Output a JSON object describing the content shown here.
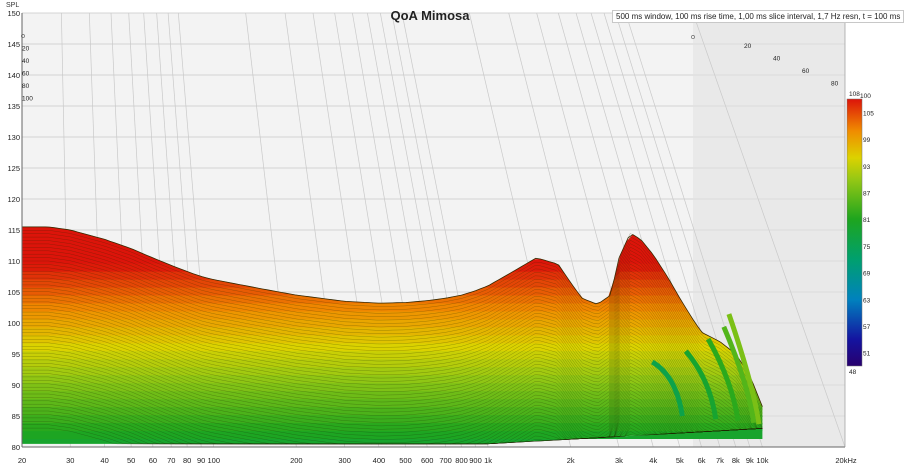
{
  "chart_data": {
    "type": "area",
    "subtype": "waterfall-3d",
    "title": "QoA Mimosa",
    "info": "500 ms window, 100 ms rise time, 1,00 ms slice interval, 1,7 Hz resn, t = 100 ms",
    "xlabel": "",
    "ylabel": "SPL",
    "x_unit_label": "20kHz",
    "xscale": "log",
    "xlim": [
      20,
      20000
    ],
    "ylim": [
      80,
      150
    ],
    "x_ticks": [
      {
        "value": 20,
        "label": "20"
      },
      {
        "value": 30,
        "label": "30"
      },
      {
        "value": 40,
        "label": "40"
      },
      {
        "value": 50,
        "label": "50"
      },
      {
        "value": 60,
        "label": "60"
      },
      {
        "value": 70,
        "label": "70"
      },
      {
        "value": 80,
        "label": "80"
      },
      {
        "value": 90,
        "label": "90"
      },
      {
        "value": 100,
        "label": "100"
      },
      {
        "value": 200,
        "label": "200"
      },
      {
        "value": 300,
        "label": "300"
      },
      {
        "value": 400,
        "label": "400"
      },
      {
        "value": 500,
        "label": "500"
      },
      {
        "value": 600,
        "label": "600"
      },
      {
        "value": 700,
        "label": "700"
      },
      {
        "value": 800,
        "label": "800"
      },
      {
        "value": 900,
        "label": "900"
      },
      {
        "value": 1000,
        "label": "1k"
      },
      {
        "value": 2000,
        "label": "2k"
      },
      {
        "value": 3000,
        "label": "3k"
      },
      {
        "value": 4000,
        "label": "4k"
      },
      {
        "value": 5000,
        "label": "5k"
      },
      {
        "value": 6000,
        "label": "6k"
      },
      {
        "value": 7000,
        "label": "7k"
      },
      {
        "value": 8000,
        "label": "8k"
      },
      {
        "value": 9000,
        "label": "9k"
      },
      {
        "value": 10000,
        "label": "10k"
      }
    ],
    "y_ticks": [
      80,
      85,
      90,
      95,
      100,
      105,
      110,
      115,
      120,
      125,
      130,
      135,
      140,
      145,
      150
    ],
    "time_axis": {
      "unit": "ms",
      "ticks": [
        {
          "value": 0,
          "label": "0"
        },
        {
          "value": 20,
          "label": "20"
        },
        {
          "value": 40,
          "label": "40"
        },
        {
          "value": 60,
          "label": "60"
        },
        {
          "value": 80,
          "label": "80"
        },
        {
          "value": 100,
          "label": "100"
        }
      ]
    },
    "colorbar": {
      "min": 48,
      "max": 108,
      "labels": [
        108,
        105,
        99,
        93,
        87,
        81,
        75,
        69,
        63,
        57,
        51,
        48
      ]
    },
    "front_slice": {
      "time_ms": 0,
      "freq": [
        20,
        25,
        30,
        40,
        50,
        60,
        70,
        80,
        90,
        100,
        150,
        200,
        300,
        400,
        500,
        600,
        700,
        800,
        900,
        1000,
        1200,
        1500,
        1800,
        2000,
        2200,
        2500,
        2800,
        3000,
        3300,
        3600,
        4000,
        4500,
        5000,
        5500,
        6000,
        7000,
        8000,
        9000,
        10000
      ],
      "spl": [
        115.5,
        115.5,
        115,
        113.5,
        112,
        110.5,
        109.3,
        108.3,
        107.5,
        107,
        105.5,
        104.5,
        103.5,
        103.2,
        103.3,
        103.6,
        104,
        104.5,
        105.2,
        106,
        108,
        110.5,
        109.5,
        106.5,
        104,
        103,
        104.5,
        110.5,
        114.5,
        113.5,
        111,
        107.5,
        104,
        101,
        98.5,
        97,
        95,
        91.5,
        86.5
      ]
    },
    "decay": [
      {
        "time_ms": 0,
        "low_end": 80.5,
        "high_end_hz": 10000
      },
      {
        "time_ms": 20,
        "low_end": 80.7,
        "high_end_hz": 9000
      },
      {
        "time_ms": 40,
        "low_end": 80.9,
        "high_end_hz": 8000
      },
      {
        "time_ms": 60,
        "low_end": 81.2,
        "high_end_hz": 6500
      },
      {
        "time_ms": 80,
        "low_end": 81.5,
        "high_end_hz": 5000
      },
      {
        "time_ms": 100,
        "low_end": 82.0,
        "high_end_hz": 3500
      }
    ],
    "grid": true,
    "legend": "colorbar-right"
  }
}
